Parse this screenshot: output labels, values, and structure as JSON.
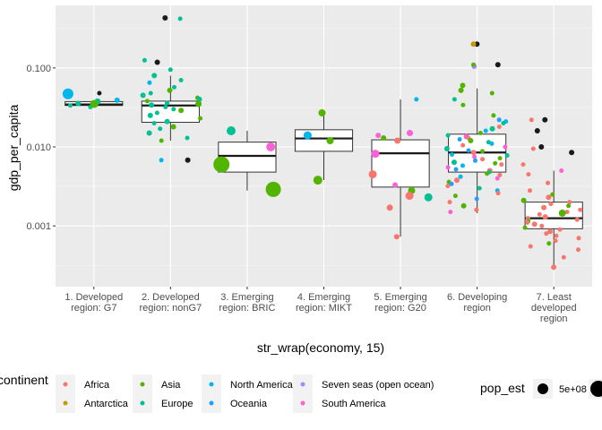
{
  "chart_data": {
    "type": "boxplot-jitter",
    "xlabel": "str_wrap(economy, 15)",
    "ylabel": "gdp_per_capita",
    "y_scale": "log10",
    "ylim": [
      0.00017,
      0.62
    ],
    "y_ticks": [
      {
        "value": 0.001,
        "label": "0.001"
      },
      {
        "value": 0.01,
        "label": "0.010"
      },
      {
        "value": 0.1,
        "label": "0.100"
      }
    ],
    "grid": true,
    "categories": [
      {
        "lines": [
          "1. Developed",
          "region: G7"
        ]
      },
      {
        "lines": [
          "2. Developed",
          "region: nonG7"
        ]
      },
      {
        "lines": [
          "3. Emerging",
          "region: BRIC"
        ]
      },
      {
        "lines": [
          "4. Emerging",
          "region: MIKT"
        ]
      },
      {
        "lines": [
          "5. Emerging",
          "region: G20"
        ]
      },
      {
        "lines": [
          "6. Developing",
          "region"
        ]
      },
      {
        "lines": [
          "7. Least",
          "developed",
          "region"
        ]
      }
    ],
    "boxes": [
      {
        "lower": 0.0325,
        "q1": 0.0335,
        "median": 0.0345,
        "q3": 0.0375,
        "upper": 0.0385,
        "outliers": [
          0.048
        ]
      },
      {
        "lower": 0.012,
        "q1": 0.0205,
        "median": 0.0335,
        "q3": 0.038,
        "upper": 0.08,
        "outliers": [
          0.0068,
          0.118,
          0.43
        ]
      },
      {
        "lower": 0.0028,
        "q1": 0.0048,
        "median": 0.0077,
        "q3": 0.0115,
        "upper": 0.016,
        "outliers": []
      },
      {
        "lower": 0.0038,
        "q1": 0.0088,
        "median": 0.0128,
        "q3": 0.0165,
        "upper": 0.027,
        "outliers": []
      },
      {
        "lower": 0.00073,
        "q1": 0.0031,
        "median": 0.0083,
        "q3": 0.0123,
        "upper": 0.04,
        "outliers": []
      },
      {
        "lower": 0.00145,
        "q1": 0.0048,
        "median": 0.0085,
        "q3": 0.0145,
        "upper": 0.055,
        "outliers": [
          0.1,
          0.11,
          0.2
        ]
      },
      {
        "lower": 0.0003,
        "q1": 0.00092,
        "median": 0.00125,
        "q3": 0.002,
        "upper": 0.005,
        "outliers": [
          0.0085,
          0.01,
          0.016,
          0.022
        ]
      }
    ],
    "points": [
      {
        "g": 0,
        "y": 0.0345,
        "c": "North America",
        "s": 3.0
      },
      {
        "g": 0,
        "y": 0.0375,
        "c": "Europe",
        "s": 3.5
      },
      {
        "g": 0,
        "y": 0.0335,
        "c": "Europe",
        "s": 2.5
      },
      {
        "g": 0,
        "y": 0.0355,
        "c": "Europe",
        "s": 3.0
      },
      {
        "g": 0,
        "y": 0.032,
        "c": "Europe",
        "s": 2.5
      },
      {
        "g": 0,
        "y": 0.035,
        "c": "Asia",
        "s": 4.5
      },
      {
        "g": 0,
        "y": 0.047,
        "c": "North America",
        "s": 6.0
      },
      {
        "g": 0,
        "y": 0.039,
        "c": "North America",
        "s": 3.0
      },
      {
        "g": 0,
        "y": 0.048,
        "c": "Other",
        "s": 2.5
      },
      {
        "g": 1,
        "y": 0.43,
        "c": "Other",
        "s": 3.0
      },
      {
        "g": 1,
        "y": 0.118,
        "c": "Other",
        "s": 3.0
      },
      {
        "g": 1,
        "y": 0.0068,
        "c": "Other",
        "s": 3.0
      },
      {
        "g": 1,
        "y": 0.42,
        "c": "Europe",
        "s": 2.5
      },
      {
        "g": 1,
        "y": 0.125,
        "c": "Europe",
        "s": 2.5
      },
      {
        "g": 1,
        "y": 0.095,
        "c": "Europe",
        "s": 2.5
      },
      {
        "g": 1,
        "y": 0.08,
        "c": "Europe",
        "s": 3.0
      },
      {
        "g": 1,
        "y": 0.07,
        "c": "Europe",
        "s": 2.5
      },
      {
        "g": 1,
        "y": 0.065,
        "c": "North America",
        "s": 2.5
      },
      {
        "g": 1,
        "y": 0.057,
        "c": "Europe",
        "s": 2.5
      },
      {
        "g": 1,
        "y": 0.052,
        "c": "Asia",
        "s": 3.0
      },
      {
        "g": 1,
        "y": 0.048,
        "c": "Europe",
        "s": 2.5
      },
      {
        "g": 1,
        "y": 0.045,
        "c": "Europe",
        "s": 3.0
      },
      {
        "g": 1,
        "y": 0.042,
        "c": "Asia",
        "s": 2.5
      },
      {
        "g": 1,
        "y": 0.04,
        "c": "Europe",
        "s": 3.0
      },
      {
        "g": 1,
        "y": 0.038,
        "c": "Asia",
        "s": 2.5
      },
      {
        "g": 1,
        "y": 0.036,
        "c": "Europe",
        "s": 2.5
      },
      {
        "g": 1,
        "y": 0.035,
        "c": "Asia",
        "s": 3.5
      },
      {
        "g": 1,
        "y": 0.034,
        "c": "Europe",
        "s": 3.0
      },
      {
        "g": 1,
        "y": 0.032,
        "c": "Europe",
        "s": 2.5
      },
      {
        "g": 1,
        "y": 0.03,
        "c": "Europe",
        "s": 2.5
      },
      {
        "g": 1,
        "y": 0.029,
        "c": "Asia",
        "s": 3.0
      },
      {
        "g": 1,
        "y": 0.027,
        "c": "Europe",
        "s": 2.5
      },
      {
        "g": 1,
        "y": 0.025,
        "c": "Europe",
        "s": 3.0
      },
      {
        "g": 1,
        "y": 0.023,
        "c": "Asia",
        "s": 2.5
      },
      {
        "g": 1,
        "y": 0.021,
        "c": "Europe",
        "s": 3.0
      },
      {
        "g": 1,
        "y": 0.02,
        "c": "Europe",
        "s": 2.5
      },
      {
        "g": 1,
        "y": 0.018,
        "c": "Asia",
        "s": 3.0
      },
      {
        "g": 1,
        "y": 0.017,
        "c": "Europe",
        "s": 2.5
      },
      {
        "g": 1,
        "y": 0.015,
        "c": "Europe",
        "s": 3.0
      },
      {
        "g": 1,
        "y": 0.013,
        "c": "Europe",
        "s": 2.5
      },
      {
        "g": 1,
        "y": 0.012,
        "c": "Asia",
        "s": 2.5
      },
      {
        "g": 1,
        "y": 0.0068,
        "c": "North America",
        "s": 2.5
      },
      {
        "g": 2,
        "y": 0.006,
        "c": "Asia",
        "s": 9.0
      },
      {
        "g": 2,
        "y": 0.0029,
        "c": "Asia",
        "s": 8.5
      },
      {
        "g": 2,
        "y": 0.016,
        "c": "Europe",
        "s": 5.0
      },
      {
        "g": 2,
        "y": 0.01,
        "c": "South America",
        "s": 5.0
      },
      {
        "g": 3,
        "y": 0.027,
        "c": "Asia",
        "s": 4.0
      },
      {
        "g": 3,
        "y": 0.014,
        "c": "North America",
        "s": 4.5
      },
      {
        "g": 3,
        "y": 0.012,
        "c": "Asia",
        "s": 4.0
      },
      {
        "g": 3,
        "y": 0.0038,
        "c": "Asia",
        "s": 5.0
      },
      {
        "g": 4,
        "y": 0.04,
        "c": "North America",
        "s": 2.5
      },
      {
        "g": 4,
        "y": 0.015,
        "c": "South America",
        "s": 3.5
      },
      {
        "g": 4,
        "y": 0.014,
        "c": "South America",
        "s": 3.0
      },
      {
        "g": 4,
        "y": 0.013,
        "c": "Asia",
        "s": 3.0
      },
      {
        "g": 4,
        "y": 0.012,
        "c": "Africa",
        "s": 3.5
      },
      {
        "g": 4,
        "y": 0.0082,
        "c": "South America",
        "s": 4.5
      },
      {
        "g": 4,
        "y": 0.0045,
        "c": "Africa",
        "s": 4.5
      },
      {
        "g": 4,
        "y": 0.0033,
        "c": "South America",
        "s": 3.0
      },
      {
        "g": 4,
        "y": 0.0028,
        "c": "Asia",
        "s": 4.0
      },
      {
        "g": 4,
        "y": 0.0024,
        "c": "Africa",
        "s": 4.5
      },
      {
        "g": 4,
        "y": 0.0023,
        "c": "Europe",
        "s": 4.5
      },
      {
        "g": 4,
        "y": 0.0017,
        "c": "Africa",
        "s": 3.5
      },
      {
        "g": 4,
        "y": 0.00073,
        "c": "Africa",
        "s": 3.0
      },
      {
        "g": 5,
        "y": 0.2,
        "c": "Other",
        "s": 3.0
      },
      {
        "g": 5,
        "y": 0.2,
        "c": "Antarctica",
        "s": 3.0
      },
      {
        "g": 5,
        "y": 0.11,
        "c": "Other",
        "s": 3.0
      },
      {
        "g": 5,
        "y": 0.105,
        "c": "Seven seas (open ocean)",
        "s": 3.0
      },
      {
        "g": 5,
        "y": 0.11,
        "c": "Asia",
        "s": 2.5
      },
      {
        "g": 5,
        "y": 0.06,
        "c": "Asia",
        "s": 3.0
      },
      {
        "g": 5,
        "y": 0.052,
        "c": "Asia",
        "s": 3.0
      },
      {
        "g": 5,
        "y": 0.048,
        "c": "Asia",
        "s": 2.5
      },
      {
        "g": 5,
        "y": 0.04,
        "c": "Europe",
        "s": 2.5
      },
      {
        "g": 5,
        "y": 0.034,
        "c": "Asia",
        "s": 2.5
      },
      {
        "g": 5,
        "y": 0.025,
        "c": "Asia",
        "s": 2.5
      },
      {
        "g": 5,
        "y": 0.022,
        "c": "Oceania",
        "s": 2.5
      },
      {
        "g": 5,
        "y": 0.021,
        "c": "North America",
        "s": 2.5
      },
      {
        "g": 5,
        "y": 0.02,
        "c": "Europe",
        "s": 2.5
      },
      {
        "g": 5,
        "y": 0.018,
        "c": "Africa",
        "s": 2.5
      },
      {
        "g": 5,
        "y": 0.017,
        "c": "Europe",
        "s": 3.0
      },
      {
        "g": 5,
        "y": 0.016,
        "c": "North America",
        "s": 2.5
      },
      {
        "g": 5,
        "y": 0.015,
        "c": "Asia",
        "s": 2.5
      },
      {
        "g": 5,
        "y": 0.014,
        "c": "Europe",
        "s": 2.5
      },
      {
        "g": 5,
        "y": 0.0135,
        "c": "South America",
        "s": 3.0
      },
      {
        "g": 5,
        "y": 0.013,
        "c": "Africa",
        "s": 2.5
      },
      {
        "g": 5,
        "y": 0.0125,
        "c": "Oceania",
        "s": 2.5
      },
      {
        "g": 5,
        "y": 0.012,
        "c": "Asia",
        "s": 3.0
      },
      {
        "g": 5,
        "y": 0.0115,
        "c": "Europe",
        "s": 2.5
      },
      {
        "g": 5,
        "y": 0.011,
        "c": "North America",
        "s": 2.5
      },
      {
        "g": 5,
        "y": 0.0105,
        "c": "Africa",
        "s": 2.5
      },
      {
        "g": 5,
        "y": 0.01,
        "c": "South America",
        "s": 2.5
      },
      {
        "g": 5,
        "y": 0.0095,
        "c": "Europe",
        "s": 3.0
      },
      {
        "g": 5,
        "y": 0.009,
        "c": "Oceania",
        "s": 2.5
      },
      {
        "g": 5,
        "y": 0.0088,
        "c": "Asia",
        "s": 2.5
      },
      {
        "g": 5,
        "y": 0.0085,
        "c": "Africa",
        "s": 3.0
      },
      {
        "g": 5,
        "y": 0.008,
        "c": "North America",
        "s": 2.5
      },
      {
        "g": 5,
        "y": 0.0078,
        "c": "Europe",
        "s": 2.5
      },
      {
        "g": 5,
        "y": 0.0075,
        "c": "South America",
        "s": 2.5
      },
      {
        "g": 5,
        "y": 0.0072,
        "c": "Asia",
        "s": 2.5
      },
      {
        "g": 5,
        "y": 0.007,
        "c": "Africa",
        "s": 2.5
      },
      {
        "g": 5,
        "y": 0.0067,
        "c": "Oceania",
        "s": 2.5
      },
      {
        "g": 5,
        "y": 0.0064,
        "c": "Europe",
        "s": 3.0
      },
      {
        "g": 5,
        "y": 0.0062,
        "c": "Asia",
        "s": 2.5
      },
      {
        "g": 5,
        "y": 0.006,
        "c": "Africa",
        "s": 2.5
      },
      {
        "g": 5,
        "y": 0.0058,
        "c": "North America",
        "s": 2.5
      },
      {
        "g": 5,
        "y": 0.0055,
        "c": "South America",
        "s": 2.5
      },
      {
        "g": 5,
        "y": 0.0052,
        "c": "Oceania",
        "s": 2.5
      },
      {
        "g": 5,
        "y": 0.005,
        "c": "Africa",
        "s": 3.0
      },
      {
        "g": 5,
        "y": 0.0048,
        "c": "Europe",
        "s": 2.5
      },
      {
        "g": 5,
        "y": 0.0046,
        "c": "Asia",
        "s": 2.5
      },
      {
        "g": 5,
        "y": 0.0044,
        "c": "Africa",
        "s": 2.5
      },
      {
        "g": 5,
        "y": 0.0042,
        "c": "North America",
        "s": 2.5
      },
      {
        "g": 5,
        "y": 0.004,
        "c": "South America",
        "s": 2.5
      },
      {
        "g": 5,
        "y": 0.0038,
        "c": "Africa",
        "s": 3.0
      },
      {
        "g": 5,
        "y": 0.0036,
        "c": "Asia",
        "s": 2.5
      },
      {
        "g": 5,
        "y": 0.0034,
        "c": "Oceania",
        "s": 2.5
      },
      {
        "g": 5,
        "y": 0.0032,
        "c": "Africa",
        "s": 2.5
      },
      {
        "g": 5,
        "y": 0.003,
        "c": "Europe",
        "s": 2.5
      },
      {
        "g": 5,
        "y": 0.0028,
        "c": "North America",
        "s": 2.5
      },
      {
        "g": 5,
        "y": 0.0026,
        "c": "Africa",
        "s": 2.5
      },
      {
        "g": 5,
        "y": 0.0024,
        "c": "Asia",
        "s": 2.5
      },
      {
        "g": 5,
        "y": 0.0022,
        "c": "Oceania",
        "s": 2.5
      },
      {
        "g": 5,
        "y": 0.002,
        "c": "Africa",
        "s": 2.5
      },
      {
        "g": 5,
        "y": 0.0018,
        "c": "Asia",
        "s": 3.0
      },
      {
        "g": 5,
        "y": 0.0016,
        "c": "Africa",
        "s": 2.5
      },
      {
        "g": 5,
        "y": 0.0015,
        "c": "South America",
        "s": 2.5
      },
      {
        "g": 6,
        "y": 0.022,
        "c": "Other",
        "s": 3.0
      },
      {
        "g": 6,
        "y": 0.016,
        "c": "Other",
        "s": 3.0
      },
      {
        "g": 6,
        "y": 0.01,
        "c": "Other",
        "s": 3.0
      },
      {
        "g": 6,
        "y": 0.0085,
        "c": "Other",
        "s": 3.0
      },
      {
        "g": 6,
        "y": 0.022,
        "c": "Africa",
        "s": 2.5
      },
      {
        "g": 6,
        "y": 0.0095,
        "c": "Africa",
        "s": 2.5
      },
      {
        "g": 6,
        "y": 0.006,
        "c": "Africa",
        "s": 2.5
      },
      {
        "g": 6,
        "y": 0.005,
        "c": "South America",
        "s": 2.5
      },
      {
        "g": 6,
        "y": 0.0045,
        "c": "Africa",
        "s": 2.5
      },
      {
        "g": 6,
        "y": 0.0035,
        "c": "Africa",
        "s": 2.5
      },
      {
        "g": 6,
        "y": 0.0028,
        "c": "Africa",
        "s": 2.5
      },
      {
        "g": 6,
        "y": 0.0025,
        "c": "Asia",
        "s": 2.5
      },
      {
        "g": 6,
        "y": 0.0023,
        "c": "Africa",
        "s": 3.0
      },
      {
        "g": 6,
        "y": 0.0021,
        "c": "Asia",
        "s": 3.0
      },
      {
        "g": 6,
        "y": 0.002,
        "c": "Africa",
        "s": 2.5
      },
      {
        "g": 6,
        "y": 0.0019,
        "c": "Africa",
        "s": 2.5
      },
      {
        "g": 6,
        "y": 0.0018,
        "c": "Asia",
        "s": 2.5
      },
      {
        "g": 6,
        "y": 0.0017,
        "c": "Africa",
        "s": 3.0
      },
      {
        "g": 6,
        "y": 0.0016,
        "c": "Africa",
        "s": 2.5
      },
      {
        "g": 6,
        "y": 0.0015,
        "c": "Africa",
        "s": 2.5
      },
      {
        "g": 6,
        "y": 0.00145,
        "c": "Asia",
        "s": 4.0
      },
      {
        "g": 6,
        "y": 0.0014,
        "c": "Africa",
        "s": 2.5
      },
      {
        "g": 6,
        "y": 0.0013,
        "c": "Africa",
        "s": 3.0
      },
      {
        "g": 6,
        "y": 0.00125,
        "c": "Africa",
        "s": 2.5
      },
      {
        "g": 6,
        "y": 0.0012,
        "c": "Africa",
        "s": 2.5
      },
      {
        "g": 6,
        "y": 0.00115,
        "c": "Asia",
        "s": 2.5
      },
      {
        "g": 6,
        "y": 0.0011,
        "c": "Africa",
        "s": 2.5
      },
      {
        "g": 6,
        "y": 0.00105,
        "c": "Africa",
        "s": 3.0
      },
      {
        "g": 6,
        "y": 0.001,
        "c": "Africa",
        "s": 2.5
      },
      {
        "g": 6,
        "y": 0.00095,
        "c": "Asia",
        "s": 2.5
      },
      {
        "g": 6,
        "y": 0.0009,
        "c": "Africa",
        "s": 2.5
      },
      {
        "g": 6,
        "y": 0.00085,
        "c": "Africa",
        "s": 3.0
      },
      {
        "g": 6,
        "y": 0.0008,
        "c": "Africa",
        "s": 2.5
      },
      {
        "g": 6,
        "y": 0.00075,
        "c": "Africa",
        "s": 2.5
      },
      {
        "g": 6,
        "y": 0.0007,
        "c": "Africa",
        "s": 2.5
      },
      {
        "g": 6,
        "y": 0.00065,
        "c": "Africa",
        "s": 2.5
      },
      {
        "g": 6,
        "y": 0.0006,
        "c": "Asia",
        "s": 2.5
      },
      {
        "g": 6,
        "y": 0.00055,
        "c": "Africa",
        "s": 2.5
      },
      {
        "g": 6,
        "y": 0.0005,
        "c": "Africa",
        "s": 2.5
      },
      {
        "g": 6,
        "y": 0.0004,
        "c": "Africa",
        "s": 2.5
      },
      {
        "g": 6,
        "y": 0.0003,
        "c": "Africa",
        "s": 3.0
      }
    ]
  },
  "legend": {
    "continent_title": "continent",
    "continent_items": [
      {
        "label": "Africa",
        "color": "#F8766D"
      },
      {
        "label": "Antarctica",
        "color": "#C49A00"
      },
      {
        "label": "Asia",
        "color": "#53B400"
      },
      {
        "label": "Europe",
        "color": "#00C094"
      },
      {
        "label": "North America",
        "color": "#00B6EB"
      },
      {
        "label": "Oceania",
        "color": "#219EFF"
      },
      {
        "label": "Seven seas (open ocean)",
        "color": "#A58AFF"
      },
      {
        "label": "South America",
        "color": "#FB61D7"
      }
    ],
    "pop_title": "pop_est",
    "pop_label": "5e+08"
  },
  "colors": {
    "panel": "#EBEBEB",
    "grid_major": "#FFFFFF",
    "outlier": "#1A1A1A",
    "Africa": "#F8766D",
    "Antarctica": "#C49A00",
    "Asia": "#53B400",
    "Europe": "#00C094",
    "North America": "#00B6EB",
    "Oceania": "#219EFF",
    "Seven seas (open ocean)": "#A58AFF",
    "South America": "#FB61D7",
    "Other": "#1A1A1A"
  }
}
